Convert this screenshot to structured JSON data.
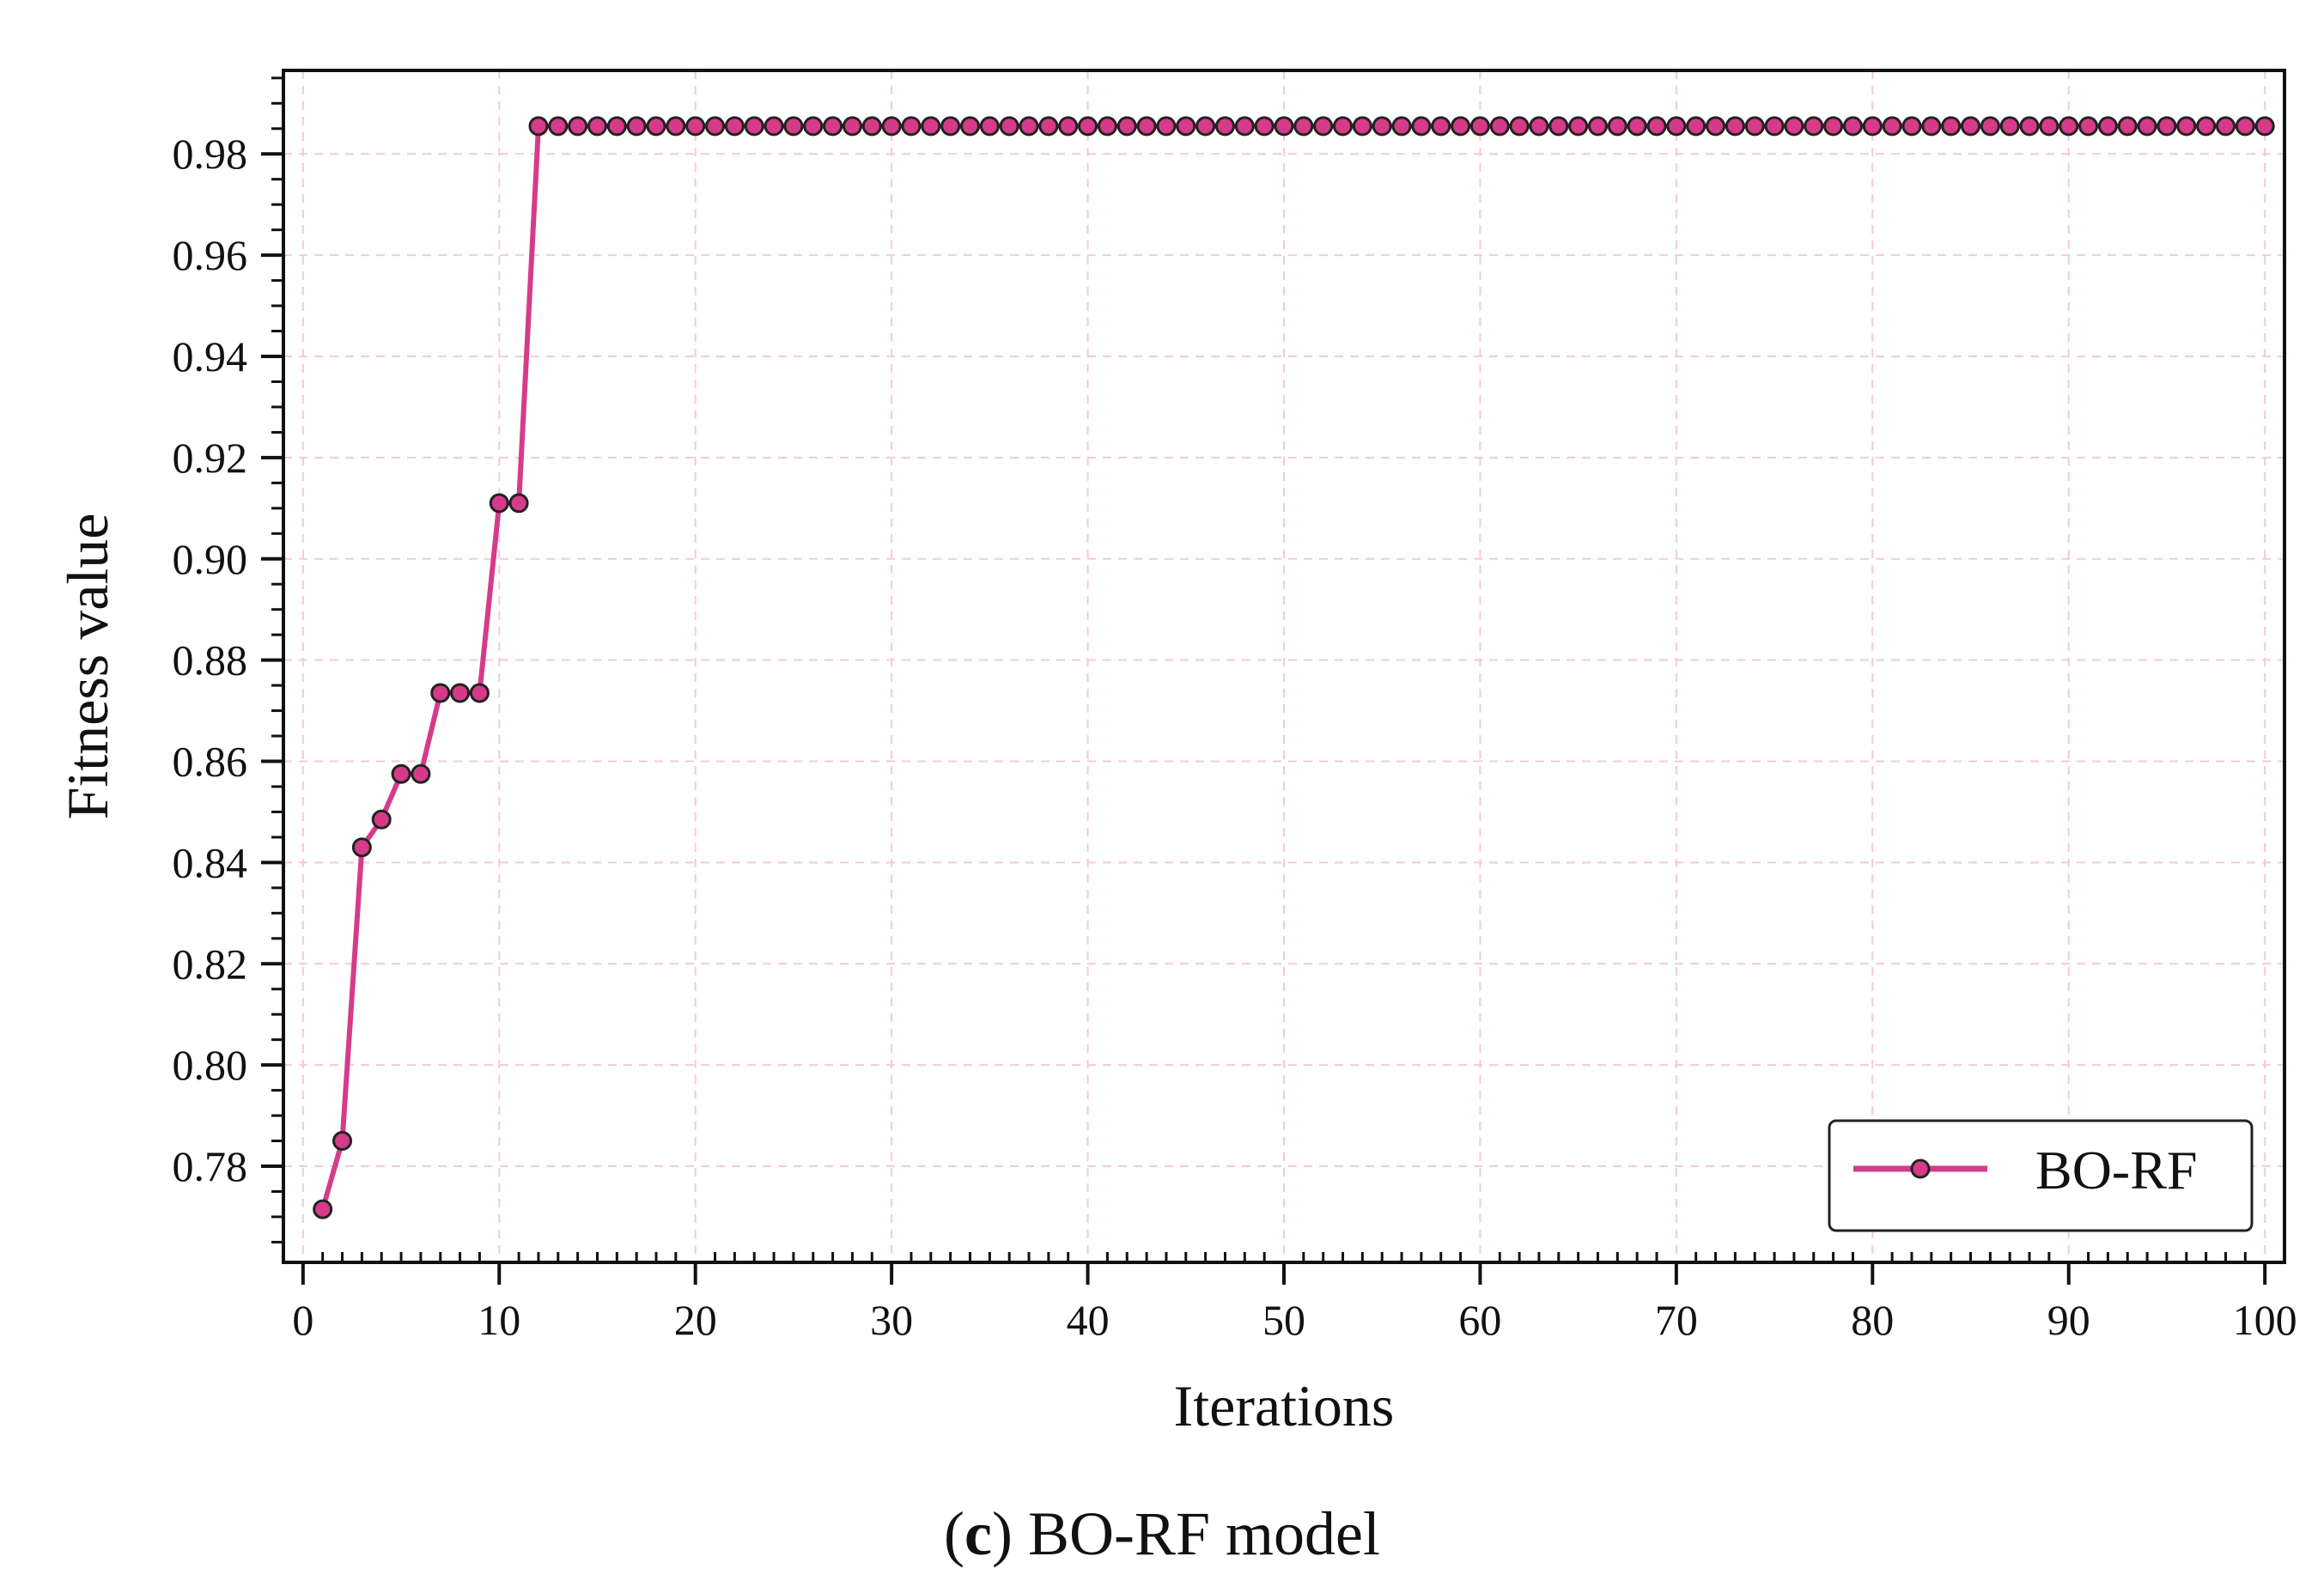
{
  "chart_data": {
    "type": "line",
    "title": "",
    "xlabel": "Iterations",
    "ylabel": "Fitness value",
    "xlim": [
      -1,
      101
    ],
    "ylim": [
      0.761,
      0.9965
    ],
    "xticks": [
      0,
      10,
      20,
      30,
      40,
      50,
      60,
      70,
      80,
      90,
      100
    ],
    "xtick_labels": [
      "0",
      "10",
      "20",
      "30",
      "40",
      "50",
      "60",
      "70",
      "80",
      "90",
      "100"
    ],
    "yticks": [
      0.78,
      0.8,
      0.82,
      0.84,
      0.86,
      0.88,
      0.9,
      0.92,
      0.94,
      0.96,
      0.98
    ],
    "ytick_labels": [
      "0.78",
      "0.80",
      "0.82",
      "0.84",
      "0.86",
      "0.88",
      "0.90",
      "0.92",
      "0.94",
      "0.96",
      "0.98"
    ],
    "grid": true,
    "legend_position": "bottom-right",
    "series": [
      {
        "name": "BO-RF",
        "color": "#d63b8a",
        "marker_edge": "#222222",
        "x": [
          1,
          2,
          3,
          4,
          5,
          6,
          7,
          8,
          9,
          10,
          11,
          12,
          13,
          14,
          15,
          16,
          17,
          18,
          19,
          20,
          21,
          22,
          23,
          24,
          25,
          26,
          27,
          28,
          29,
          30,
          31,
          32,
          33,
          34,
          35,
          36,
          37,
          38,
          39,
          40,
          41,
          42,
          43,
          44,
          45,
          46,
          47,
          48,
          49,
          50,
          51,
          52,
          53,
          54,
          55,
          56,
          57,
          58,
          59,
          60,
          61,
          62,
          63,
          64,
          65,
          66,
          67,
          68,
          69,
          70,
          71,
          72,
          73,
          74,
          75,
          76,
          77,
          78,
          79,
          80,
          81,
          82,
          83,
          84,
          85,
          86,
          87,
          88,
          89,
          90,
          91,
          92,
          93,
          94,
          95,
          96,
          97,
          98,
          99,
          100
        ],
        "values": [
          0.7715,
          0.785,
          0.843,
          0.8485,
          0.8575,
          0.8575,
          0.8735,
          0.8735,
          0.8735,
          0.911,
          0.911,
          0.9855,
          0.9855,
          0.9855,
          0.9855,
          0.9855,
          0.9855,
          0.9855,
          0.9855,
          0.9855,
          0.9855,
          0.9855,
          0.9855,
          0.9855,
          0.9855,
          0.9855,
          0.9855,
          0.9855,
          0.9855,
          0.9855,
          0.9855,
          0.9855,
          0.9855,
          0.9855,
          0.9855,
          0.9855,
          0.9855,
          0.9855,
          0.9855,
          0.9855,
          0.9855,
          0.9855,
          0.9855,
          0.9855,
          0.9855,
          0.9855,
          0.9855,
          0.9855,
          0.9855,
          0.9855,
          0.9855,
          0.9855,
          0.9855,
          0.9855,
          0.9855,
          0.9855,
          0.9855,
          0.9855,
          0.9855,
          0.9855,
          0.9855,
          0.9855,
          0.9855,
          0.9855,
          0.9855,
          0.9855,
          0.9855,
          0.9855,
          0.9855,
          0.9855,
          0.9855,
          0.9855,
          0.9855,
          0.9855,
          0.9855,
          0.9855,
          0.9855,
          0.9855,
          0.9855,
          0.9855,
          0.9855,
          0.9855,
          0.9855,
          0.9855,
          0.9855,
          0.9855,
          0.9855,
          0.9855,
          0.9855,
          0.9855,
          0.9855,
          0.9855,
          0.9855,
          0.9855,
          0.9855,
          0.9855,
          0.9855,
          0.9855,
          0.9855,
          0.9855
        ]
      }
    ]
  },
  "caption": {
    "letter": "c",
    "open": "(",
    "close": ")",
    "text": " BO-RF model"
  }
}
